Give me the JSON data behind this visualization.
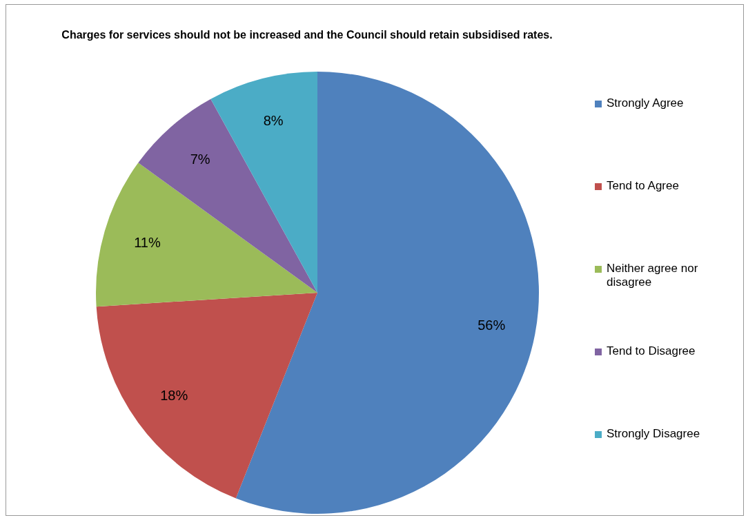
{
  "chart_data": {
    "type": "pie",
    "title": "Charges for services should not be increased and the Council should retain subsidised rates.",
    "categories": [
      "Strongly Agree",
      "Tend to Agree",
      "Neither agree nor disagree",
      "Tend to Disagree",
      "Strongly Disagree"
    ],
    "values": [
      56,
      18,
      11,
      7,
      8
    ],
    "colors": [
      "#4f81bd",
      "#c0504d",
      "#9bbb59",
      "#8064a2",
      "#4bacc6"
    ],
    "value_labels": [
      "56%",
      "18%",
      "11%",
      "7%",
      "8%"
    ],
    "legend": "right"
  }
}
